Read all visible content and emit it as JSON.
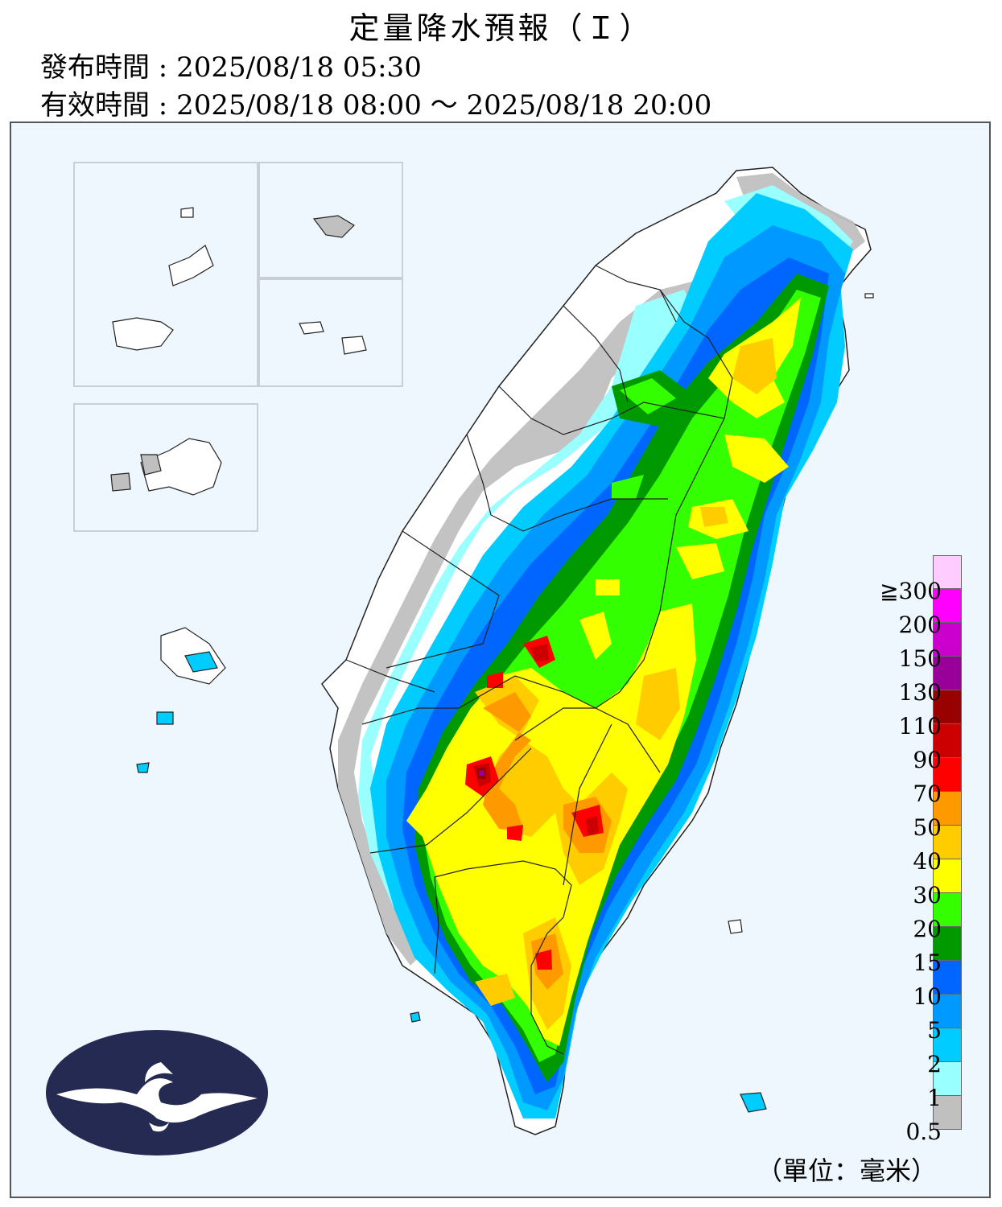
{
  "header": {
    "title": "定量降水預報（Ｉ）",
    "issue_time": "發布時間 : 2025/08/18 05:30",
    "valid_time": "有效時間 : 2025/08/18 08:00 ～ 2025/08/18 20:00"
  },
  "legend": {
    "unit": "（單位：毫米）",
    "levels": [
      {
        "label": "0.5",
        "color": "#c0c0c0"
      },
      {
        "label": "1",
        "color": "#99ffff"
      },
      {
        "label": "2",
        "color": "#00ccff"
      },
      {
        "label": "5",
        "color": "#0099ff"
      },
      {
        "label": "10",
        "color": "#0066ff"
      },
      {
        "label": "15",
        "color": "#009900"
      },
      {
        "label": "20",
        "color": "#33ff00"
      },
      {
        "label": "30",
        "color": "#ffff00"
      },
      {
        "label": "40",
        "color": "#ffcc00"
      },
      {
        "label": "50",
        "color": "#ff9900"
      },
      {
        "label": "70",
        "color": "#ff0000"
      },
      {
        "label": "90",
        "color": "#cc0000"
      },
      {
        "label": "110",
        "color": "#990000"
      },
      {
        "label": "130",
        "color": "#990099"
      },
      {
        "label": "150",
        "color": "#cc00cc"
      },
      {
        "label": "200",
        "color": "#ff00ff"
      },
      {
        "label": "≧300",
        "color": "#ffccff"
      }
    ]
  },
  "map": {
    "ocean_color": "#eef7fd",
    "land_color": "#ffffff",
    "logo_color": "#252a52"
  }
}
